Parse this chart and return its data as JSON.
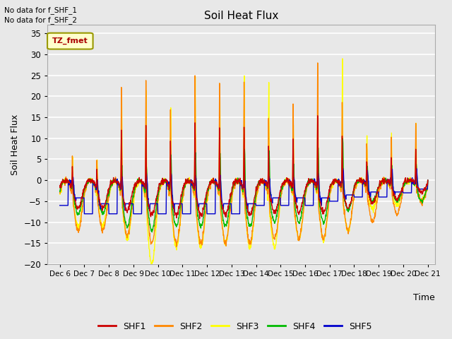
{
  "title": "Soil Heat Flux",
  "ylabel": "Soil Heat Flux",
  "xlabel": "Time",
  "xlim_days": [
    5.5,
    21.3
  ],
  "ylim": [
    -20,
    37
  ],
  "yticks": [
    -20,
    -15,
    -10,
    -5,
    0,
    5,
    10,
    15,
    20,
    25,
    30,
    35
  ],
  "xtick_labels": [
    "Dec 6",
    "Dec 7",
    "Dec 8",
    "Dec 9",
    "Dec 10",
    "Dec 11",
    "Dec 12",
    "Dec 13",
    "Dec 14",
    "Dec 15",
    "Dec 16",
    "Dec 17",
    "Dec 18",
    "Dec 19",
    "Dec 20",
    "Dec 21"
  ],
  "xtick_positions": [
    6,
    7,
    8,
    9,
    10,
    11,
    12,
    13,
    14,
    15,
    16,
    17,
    18,
    19,
    20,
    21
  ],
  "colors": {
    "SHF1": "#cc0000",
    "SHF2": "#ff8800",
    "SHF3": "#ffff00",
    "SHF4": "#00bb00",
    "SHF5": "#0000cc"
  },
  "line_width": 1.0,
  "no_data_text1": "No data for f_SHF_1",
  "no_data_text2": "No data for f_SHF_2",
  "tz_label": "TZ_fmet",
  "fig_bg_color": "#e8e8e8",
  "plot_bg_color": "#e8e8e8",
  "grid_color": "#ffffff",
  "legend_entries": [
    "SHF1",
    "SHF2",
    "SHF3",
    "SHF4",
    "SHF5"
  ],
  "shf2_day_amps": [
    10,
    8.5,
    27,
    29,
    22,
    30,
    29,
    29,
    19,
    24,
    33,
    23,
    13,
    13,
    15
  ],
  "shf2_night": [
    -12,
    -12,
    -13,
    -15,
    -15,
    -15,
    -15,
    -15,
    -14,
    -14,
    -14,
    -12,
    -10,
    -8,
    -5
  ],
  "shf3_day_amps": [
    10,
    9,
    27,
    29,
    23,
    30,
    29,
    31,
    29,
    19,
    26,
    33,
    13,
    13,
    15
  ],
  "shf3_night": [
    -11,
    -11,
    -14,
    -20,
    -16,
    -16,
    -15,
    -16,
    -16,
    -14,
    -14,
    -12,
    -7,
    -6,
    -5
  ],
  "shf4_day_amps": [
    3,
    3,
    8,
    8,
    11,
    11,
    11,
    12,
    11,
    8,
    12,
    13,
    6,
    6,
    6
  ],
  "shf4_night": [
    -8,
    -8,
    -11,
    -12,
    -11,
    -11,
    -11,
    -11,
    -10,
    -10,
    -10,
    -7,
    -5,
    -5,
    -5
  ],
  "shf5_night": [
    -6,
    -8,
    -8,
    -8,
    -8,
    -8,
    -8,
    -8,
    -6,
    -6,
    -6,
    -5,
    -4,
    -4,
    -3
  ],
  "shf5_day_amps": [
    3,
    3,
    4,
    5,
    5,
    4,
    4,
    3,
    3,
    3,
    4,
    5,
    4,
    4,
    4
  ]
}
